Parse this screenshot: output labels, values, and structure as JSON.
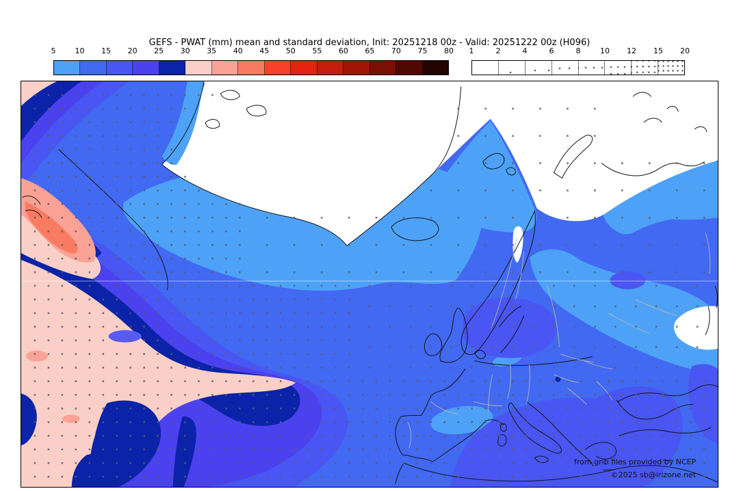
{
  "title": "GEFS - PWAT (mm) mean and standard deviation, Init: 20251218 00z - Valid: 20251222 00z (H096)",
  "legend_mean": {
    "labels": [
      "5",
      "10",
      "15",
      "20",
      "25",
      "30",
      "35",
      "40",
      "45",
      "50",
      "55",
      "60",
      "65",
      "70",
      "75",
      "80"
    ],
    "colors": [
      "#4DA2F7",
      "#4269F2",
      "#4956F3",
      "#4B41EF",
      "#0B23A8",
      "#FACFC7",
      "#FBA296",
      "#F97B61",
      "#F8402A",
      "#E3220F",
      "#C41D0B",
      "#A31605",
      "#7A0F04",
      "#4E0A02",
      "#230500"
    ]
  },
  "legend_sd": {
    "labels": [
      "1",
      "2",
      "4",
      "6",
      "8",
      "10",
      "12",
      "15",
      "20"
    ],
    "dot_spacings": [
      0,
      26,
      20,
      14,
      12,
      10,
      8.5,
      7
    ]
  },
  "attribution": {
    "line1": "from grib files provided by NCEP",
    "line2": "©2025 sb@irizone.net"
  },
  "map": {
    "colors": {
      "pwat_lt5": "#ffffff",
      "pwat_5_10": "#4DA2F7",
      "pwat_10_15": "#4269F2",
      "pwat_15_20": "#4956F3",
      "pwat_20_25": "#4B41EF",
      "pwat_25_30": "#0B23A8",
      "pwat_30_35": "#FACFC7",
      "pwat_35_40": "#FBA296",
      "pwat_40_45": "#F97B61",
      "violet_lens": "#575CF1",
      "coastline": "#141414",
      "country_border": "#b6b6b6",
      "stipple": "#5c5c66",
      "graticule": "rgba(255,255,255,0.5)"
    }
  }
}
